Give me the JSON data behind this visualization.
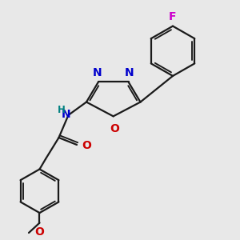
{
  "background_color": "#e8e8e8",
  "bond_color": "#1a1a1a",
  "N_color": "#0000cc",
  "O_color": "#cc0000",
  "F_color": "#cc00cc",
  "H_color": "#008080",
  "figsize": [
    3.0,
    3.0
  ],
  "dpi": 100,
  "xlim": [
    0,
    10
  ],
  "ylim": [
    0,
    10
  ],
  "lw": 1.6,
  "fs": 10.0
}
